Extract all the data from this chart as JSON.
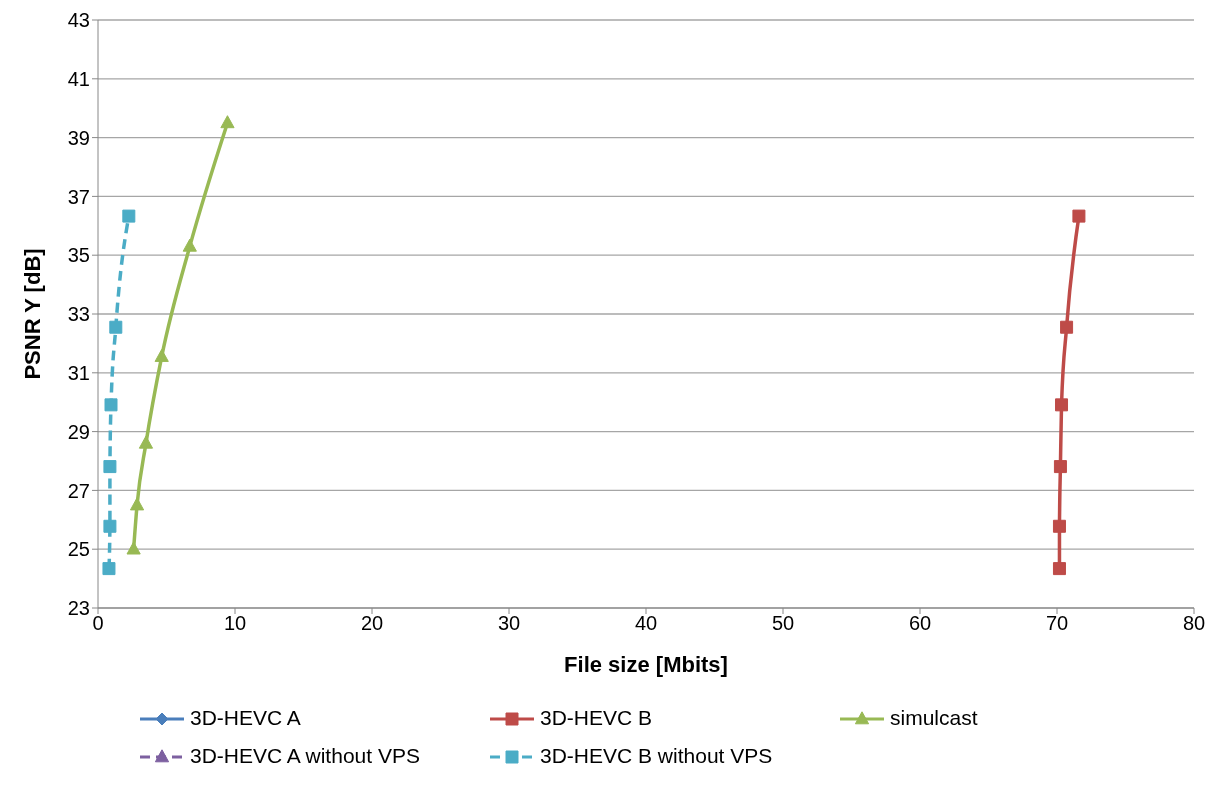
{
  "chart_data": {
    "type": "line",
    "xlabel": "File size [Mbits]",
    "ylabel": "PSNR Y [dB]",
    "xlim": [
      0,
      80
    ],
    "xticks": [
      0,
      10,
      20,
      30,
      40,
      50,
      60,
      70,
      80
    ],
    "ylim": [
      23,
      43
    ],
    "yticks": [
      23,
      25,
      27,
      29,
      31,
      33,
      35,
      37,
      39,
      41,
      43
    ],
    "grid": "y",
    "legend": "bottom",
    "series": [
      {
        "name": "3D-HEVC A",
        "color": "#4a7ebb",
        "marker": "diamond",
        "line_style": "solid"
      },
      {
        "name": "3D-HEVC B",
        "color": "#be4b48",
        "marker": "square",
        "line_style": "solid",
        "x": [
          70.18,
          70.18,
          70.25,
          70.33,
          70.7,
          71.6
        ],
        "values": [
          24.34,
          25.78,
          27.81,
          29.91,
          32.55,
          36.33
        ]
      },
      {
        "name": "simulcast",
        "color": "#98b954",
        "marker": "triangle",
        "line_style": "solid",
        "x": [
          2.6,
          2.85,
          3.5,
          4.65,
          6.7,
          9.45
        ],
        "values": [
          25.0,
          26.5,
          28.6,
          31.55,
          35.3,
          39.5
        ]
      },
      {
        "name": "3D-HEVC A without VPS",
        "color": "#7d60a0",
        "marker": "triangle",
        "line_style": "dashed"
      },
      {
        "name": "3D-HEVC B without VPS",
        "color": "#4bacc6",
        "marker": "square",
        "line_style": "dashed",
        "x": [
          0.8,
          0.87,
          0.87,
          0.95,
          1.3,
          2.25
        ],
        "values": [
          24.34,
          25.78,
          27.81,
          29.91,
          32.55,
          36.33
        ]
      }
    ]
  }
}
